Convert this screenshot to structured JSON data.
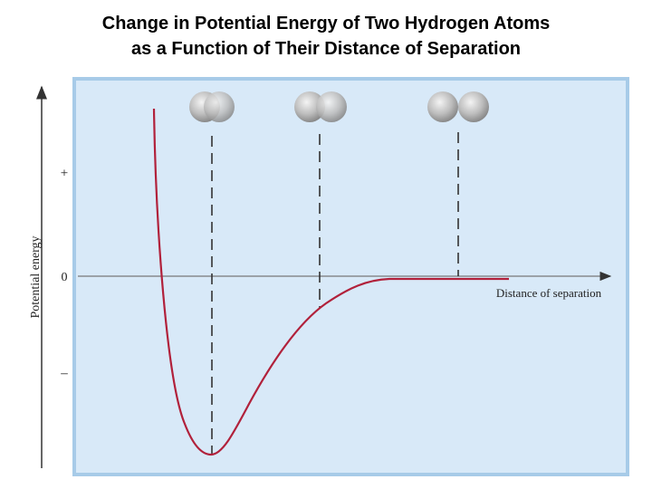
{
  "header": {
    "title_lines": [
      "Change in Potential Energy of Two Hydrogen Atoms",
      "as a Function of Their Distance of Separation"
    ]
  },
  "diagram": {
    "y_axis_label": "Potential energy",
    "y_tick_labels": [
      "+",
      "0",
      "–"
    ],
    "x_axis_label": "Distance of separation"
  }
}
